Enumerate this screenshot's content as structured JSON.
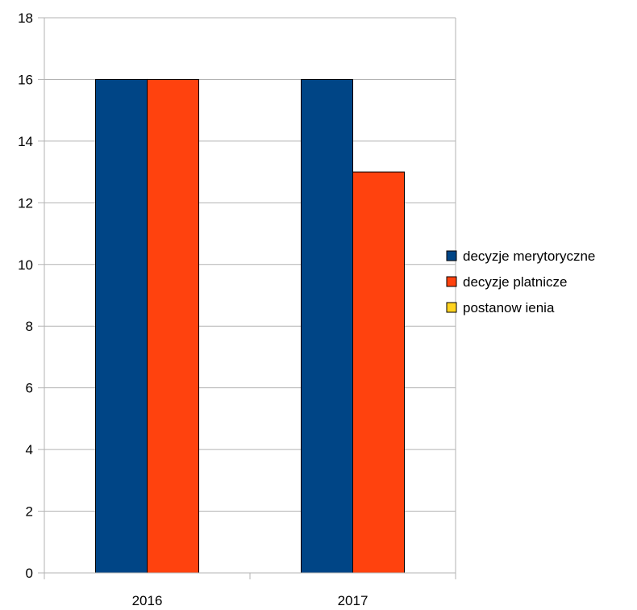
{
  "chart_data": {
    "type": "bar",
    "categories": [
      "2016",
      "2017"
    ],
    "series": [
      {
        "name": "decyzje merytoryczne",
        "values": [
          16,
          16
        ],
        "color": "#004586"
      },
      {
        "name": "decyzje platnicze",
        "values": [
          16,
          13
        ],
        "color": "#ff420e"
      },
      {
        "name": "postanow ienia",
        "values": [
          0,
          0
        ],
        "color": "#ffd320"
      }
    ],
    "ylim": [
      0,
      18
    ],
    "yticks": [
      0,
      2,
      4,
      6,
      8,
      10,
      12,
      14,
      16,
      18
    ],
    "grid": true,
    "legend_position": "right",
    "title": "",
    "xlabel": "",
    "ylabel": ""
  }
}
